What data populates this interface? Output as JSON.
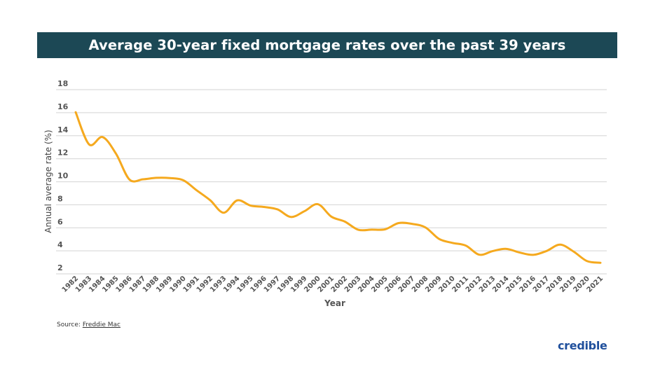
{
  "chart_data": {
    "type": "line",
    "title": "Average 30-year fixed mortgage rates over the past 39 years",
    "xlabel": "Year",
    "ylabel": "Annual average rate (%)",
    "ylim": [
      2,
      18
    ],
    "yticks": [
      "2",
      "4",
      "6",
      "8",
      "10",
      "12",
      "14",
      "16",
      "18"
    ],
    "grid": true,
    "x": [
      "1982",
      "1983",
      "1984",
      "1985",
      "1986",
      "1987",
      "1988",
      "1989",
      "1990",
      "1991",
      "1992",
      "1993",
      "1994",
      "1995",
      "1996",
      "1997",
      "1998",
      "1999",
      "2000",
      "2001",
      "2002",
      "2003",
      "2004",
      "2005",
      "2006",
      "2007",
      "2008",
      "2009",
      "2010",
      "2011",
      "2012",
      "2013",
      "2014",
      "2015",
      "2016",
      "2017",
      "2018",
      "2019",
      "2020",
      "2021"
    ],
    "values": [
      16.04,
      13.24,
      13.88,
      12.43,
      10.19,
      10.21,
      10.34,
      10.32,
      10.13,
      9.25,
      8.39,
      7.31,
      8.38,
      7.93,
      7.81,
      7.6,
      6.94,
      7.44,
      8.05,
      6.97,
      6.54,
      5.83,
      5.84,
      5.87,
      6.41,
      6.34,
      6.03,
      5.04,
      4.69,
      4.45,
      3.66,
      3.98,
      4.17,
      3.85,
      3.65,
      3.99,
      4.54,
      3.94,
      3.11,
      2.96
    ],
    "line_color": "#f5a91e"
  },
  "title_bar_color": "#1c4855",
  "source": {
    "label": "Source:",
    "link": "Freddie Mac"
  },
  "logo": "credible"
}
